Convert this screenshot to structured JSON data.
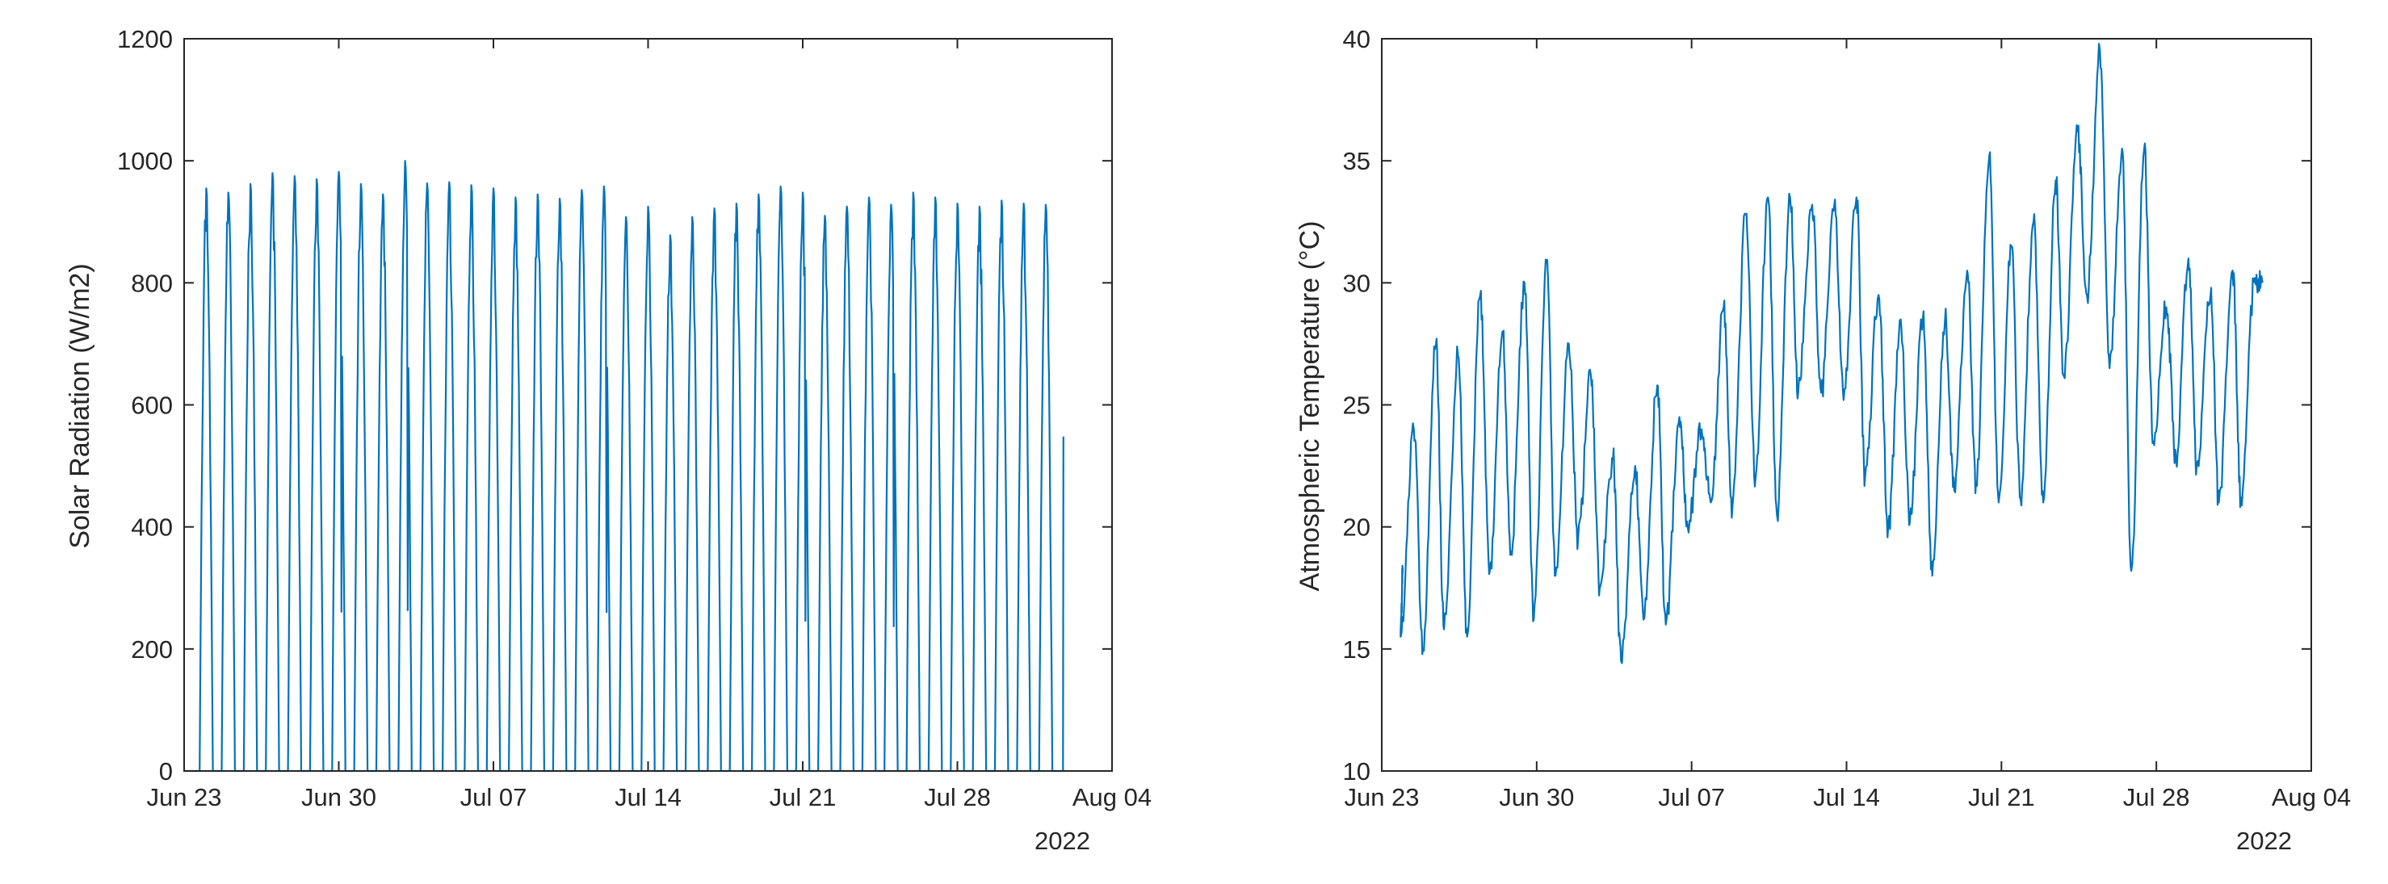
{
  "colors": {
    "series": "#0072BD",
    "axis": "#262626",
    "background": "#ffffff"
  },
  "chart_data": [
    {
      "type": "line",
      "title": "",
      "xlabel": "",
      "ylabel": "Solar Radiation (W/m2)",
      "year_label": "2022",
      "x_start_day": 0,
      "x_end_day": 42,
      "xlim": [
        0,
        42
      ],
      "ylim": [
        0,
        1200
      ],
      "x_ticks": [
        {
          "day": 0,
          "label": "Jun 23"
        },
        {
          "day": 7,
          "label": "Jun 30"
        },
        {
          "day": 14,
          "label": "Jul 07"
        },
        {
          "day": 21,
          "label": "Jul 14"
        },
        {
          "day": 28,
          "label": "Jul 21"
        },
        {
          "day": 35,
          "label": "Jul 28"
        },
        {
          "day": 42,
          "label": "Aug 04"
        }
      ],
      "y_ticks": [
        {
          "value": 0,
          "label": "0"
        },
        {
          "value": 200,
          "label": "200"
        },
        {
          "value": 400,
          "label": "400"
        },
        {
          "value": 600,
          "label": "600"
        },
        {
          "value": 800,
          "label": "800"
        },
        {
          "value": 1000,
          "label": "1000"
        },
        {
          "value": 1200,
          "label": "1200"
        }
      ],
      "daily_peaks": [
        {
          "day": 1,
          "peak": 955
        },
        {
          "day": 2,
          "peak": 948
        },
        {
          "day": 3,
          "peak": 962
        },
        {
          "day": 4,
          "peak": 980
        },
        {
          "day": 5,
          "peak": 975
        },
        {
          "day": 6,
          "peak": 970
        },
        {
          "day": 7,
          "peak": 982
        },
        {
          "day": 8,
          "peak": 962
        },
        {
          "day": 9,
          "peak": 945
        },
        {
          "day": 10,
          "peak": 1000
        },
        {
          "day": 11,
          "peak": 963
        },
        {
          "day": 12,
          "peak": 965
        },
        {
          "day": 13,
          "peak": 960
        },
        {
          "day": 14,
          "peak": 955
        },
        {
          "day": 15,
          "peak": 940
        },
        {
          "day": 16,
          "peak": 945
        },
        {
          "day": 17,
          "peak": 938
        },
        {
          "day": 18,
          "peak": 952
        },
        {
          "day": 19,
          "peak": 958
        },
        {
          "day": 20,
          "peak": 908
        },
        {
          "day": 21,
          "peak": 925
        },
        {
          "day": 22,
          "peak": 878
        },
        {
          "day": 23,
          "peak": 908
        },
        {
          "day": 24,
          "peak": 922
        },
        {
          "day": 25,
          "peak": 930
        },
        {
          "day": 26,
          "peak": 945
        },
        {
          "day": 27,
          "peak": 958
        },
        {
          "day": 28,
          "peak": 948
        },
        {
          "day": 29,
          "peak": 910
        },
        {
          "day": 30,
          "peak": 925
        },
        {
          "day": 31,
          "peak": 940
        },
        {
          "day": 32,
          "peak": 928
        },
        {
          "day": 33,
          "peak": 948
        },
        {
          "day": 34,
          "peak": 940
        },
        {
          "day": 35,
          "peak": 930
        },
        {
          "day": 36,
          "peak": 925
        },
        {
          "day": 37,
          "peak": 935
        },
        {
          "day": 38,
          "peak": 930
        },
        {
          "day": 39,
          "peak": 928
        }
      ],
      "final_point": {
        "day": 39.8,
        "value": 548
      }
    },
    {
      "type": "line",
      "title": "",
      "xlabel": "",
      "ylabel": "Atmospheric Temperature (°C)",
      "year_label": "2022",
      "xlim": [
        0,
        42
      ],
      "ylim": [
        10,
        40
      ],
      "x_ticks": [
        {
          "day": 0,
          "label": "Jun 23"
        },
        {
          "day": 7,
          "label": "Jun 30"
        },
        {
          "day": 14,
          "label": "Jul 07"
        },
        {
          "day": 21,
          "label": "Jul 14"
        },
        {
          "day": 28,
          "label": "Jul 21"
        },
        {
          "day": 35,
          "label": "Jul 28"
        },
        {
          "day": 42,
          "label": "Aug 04"
        }
      ],
      "y_ticks": [
        {
          "value": 10,
          "label": "10"
        },
        {
          "value": 15,
          "label": "15"
        },
        {
          "value": 20,
          "label": "20"
        },
        {
          "value": 25,
          "label": "25"
        },
        {
          "value": 30,
          "label": "30"
        },
        {
          "value": 35,
          "label": "35"
        },
        {
          "value": 40,
          "label": "40"
        }
      ],
      "start_point": {
        "day": 0.95,
        "value": 18.3
      },
      "daily_extremes": [
        {
          "day": 1,
          "min": 15.5,
          "max": 24.0
        },
        {
          "day": 2,
          "min": 15.0,
          "max": 27.5
        },
        {
          "day": 3,
          "min": 15.8,
          "max": 27.0
        },
        {
          "day": 4,
          "min": 15.5,
          "max": 29.5
        },
        {
          "day": 5,
          "min": 18.2,
          "max": 28.0
        },
        {
          "day": 6,
          "min": 19.0,
          "max": 30.0
        },
        {
          "day": 7,
          "min": 16.2,
          "max": 30.8
        },
        {
          "day": 8,
          "min": 18.0,
          "max": 27.5
        },
        {
          "day": 9,
          "min": 19.5,
          "max": 26.2
        },
        {
          "day": 10,
          "min": 17.5,
          "max": 22.8
        },
        {
          "day": 11,
          "min": 14.5,
          "max": 22.5
        },
        {
          "day": 12,
          "min": 16.2,
          "max": 25.8
        },
        {
          "day": 13,
          "min": 16.0,
          "max": 24.5
        },
        {
          "day": 14,
          "min": 20.0,
          "max": 24.0
        },
        {
          "day": 15,
          "min": 21.0,
          "max": 29.0
        },
        {
          "day": 16,
          "min": 20.8,
          "max": 32.8
        },
        {
          "day": 17,
          "min": 22.0,
          "max": 33.5
        },
        {
          "day": 18,
          "min": 20.5,
          "max": 33.5
        },
        {
          "day": 19,
          "min": 25.5,
          "max": 33.2
        },
        {
          "day": 20,
          "min": 25.5,
          "max": 33.2
        },
        {
          "day": 21,
          "min": 25.2,
          "max": 33.5
        },
        {
          "day": 22,
          "min": 22.0,
          "max": 29.5
        },
        {
          "day": 23,
          "min": 20.0,
          "max": 28.5
        },
        {
          "day": 24,
          "min": 20.2,
          "max": 28.5
        },
        {
          "day": 25,
          "min": 18.0,
          "max": 28.5
        },
        {
          "day": 26,
          "min": 21.5,
          "max": 30.5
        },
        {
          "day": 27,
          "min": 21.8,
          "max": 35.2
        },
        {
          "day": 28,
          "min": 21.0,
          "max": 31.5
        },
        {
          "day": 29,
          "min": 21.2,
          "max": 32.5
        },
        {
          "day": 30,
          "min": 21.0,
          "max": 34.2
        },
        {
          "day": 31,
          "min": 26.2,
          "max": 36.2
        },
        {
          "day": 32,
          "min": 29.5,
          "max": 39.5
        },
        {
          "day": 33,
          "min": 26.5,
          "max": 35.5
        },
        {
          "day": 34,
          "min": 18.2,
          "max": 35.5
        },
        {
          "day": 35,
          "min": 23.5,
          "max": 29.0
        },
        {
          "day": 36,
          "min": 22.8,
          "max": 31.0
        },
        {
          "day": 37,
          "min": 22.5,
          "max": 29.5
        },
        {
          "day": 38,
          "min": 21.0,
          "max": 30.5
        },
        {
          "day": 39,
          "min": 21.2,
          "max": 30.2
        }
      ],
      "end_point": {
        "day": 39.8,
        "value": 30.0
      }
    }
  ]
}
